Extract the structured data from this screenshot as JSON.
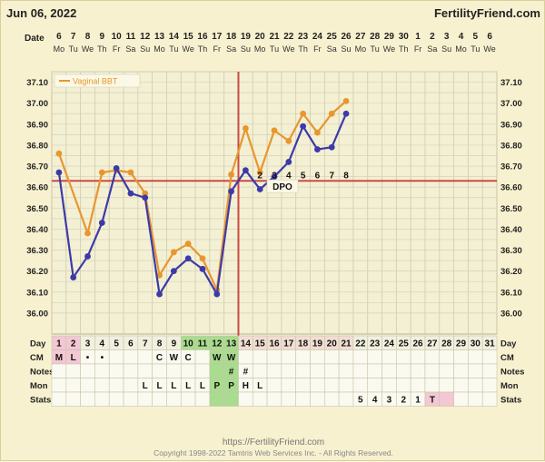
{
  "header": {
    "date": "Jun 06, 2022",
    "brand": "FertilityFriend.com",
    "date_row_label": "Date",
    "dates": [
      "6",
      "7",
      "8",
      "9",
      "10",
      "11",
      "12",
      "13",
      "14",
      "15",
      "16",
      "17",
      "18",
      "19",
      "20",
      "21",
      "22",
      "23",
      "24",
      "25",
      "26",
      "27",
      "28",
      "29",
      "30",
      "1",
      "2",
      "3",
      "4",
      "5",
      "6"
    ],
    "weekdays": [
      "Mo",
      "Tu",
      "We",
      "Th",
      "Fr",
      "Sa",
      "Su",
      "Mo",
      "Tu",
      "We",
      "Th",
      "Fr",
      "Sa",
      "Su",
      "Mo",
      "Tu",
      "We",
      "Th",
      "Fr",
      "Sa",
      "Su",
      "Mo",
      "Tu",
      "We",
      "Th",
      "Fr",
      "Sa",
      "Su",
      "Mo",
      "Tu",
      "We"
    ]
  },
  "chart_data": {
    "type": "line",
    "x": [
      1,
      2,
      3,
      4,
      5,
      6,
      7,
      8,
      9,
      10,
      11,
      12,
      13,
      14,
      15,
      16,
      17,
      18,
      19,
      20,
      21,
      22,
      23,
      24,
      25,
      26,
      27,
      28,
      29,
      30,
      31
    ],
    "ylim": [
      35.9,
      37.15
    ],
    "yticks": [
      "37.10",
      "37.00",
      "36.90",
      "36.80",
      "36.70",
      "36.60",
      "36.50",
      "36.40",
      "36.30",
      "36.20",
      "36.10",
      "36.00"
    ],
    "series": [
      {
        "name": "Vaginal BBT",
        "color": "#e8962e",
        "values": [
          36.76,
          null,
          36.38,
          36.67,
          36.68,
          36.67,
          36.57,
          36.18,
          36.29,
          36.33,
          36.26,
          36.11,
          36.66,
          36.88,
          36.67,
          36.87,
          36.82,
          36.95,
          36.86,
          36.95,
          37.01,
          null,
          null,
          null,
          null,
          null,
          null,
          null,
          null,
          null,
          null
        ]
      },
      {
        "name": "",
        "color": "#3d3aa8",
        "values": [
          36.67,
          36.17,
          36.27,
          36.43,
          36.69,
          36.57,
          36.55,
          36.09,
          36.2,
          36.26,
          36.21,
          36.09,
          36.58,
          36.68,
          36.59,
          36.65,
          36.72,
          36.89,
          36.78,
          36.79,
          36.95,
          null,
          null,
          null,
          null,
          null,
          null,
          null,
          null,
          null,
          null
        ]
      }
    ],
    "coverline": 36.63,
    "ovulation_day": 13,
    "dpo_label": "DPO",
    "dpo_numbers": [
      {
        "day": 15,
        "n": "2"
      },
      {
        "day": 16,
        "n": "3"
      },
      {
        "day": 17,
        "n": "4"
      },
      {
        "day": 18,
        "n": "5"
      },
      {
        "day": 19,
        "n": "6"
      },
      {
        "day": 20,
        "n": "7"
      },
      {
        "day": 21,
        "n": "8"
      }
    ]
  },
  "rows": {
    "labels": [
      "Day",
      "CM",
      "Notes",
      "Mon",
      "Stats"
    ],
    "days": [
      "1",
      "2",
      "3",
      "4",
      "5",
      "6",
      "7",
      "8",
      "9",
      "10",
      "11",
      "12",
      "13",
      "14",
      "15",
      "16",
      "17",
      "18",
      "19",
      "20",
      "21",
      "22",
      "23",
      "24",
      "25",
      "26",
      "27",
      "28",
      "29",
      "30",
      "31"
    ],
    "cm": {
      "1": "M",
      "2": "L",
      "3": "•",
      "4": "•",
      "8": "C",
      "9": "W",
      "10": "C",
      "12": "W",
      "13": "W"
    },
    "notes": {
      "13": "#",
      "14": "#"
    },
    "mon": {
      "7": "L",
      "8": "L",
      "9": "L",
      "10": "L",
      "11": "L",
      "12": "P",
      "13": "P",
      "14": "H",
      "15": "L"
    },
    "stats": {
      "22": "5",
      "23": "4",
      "24": "3",
      "25": "2",
      "26": "1",
      "27": "T"
    }
  },
  "colors": {
    "bbt": "#e8962e",
    "line2": "#3d3aa8",
    "coverline": "#cc4a44",
    "fertile_green": "#a9dc8e",
    "period_pink": "#f3c7d3",
    "post_ov_pink": "#f2ddd2"
  },
  "footer": {
    "url": "https://FertilityFriend.com",
    "copyright": "Copyright 1998-2022 Tamtris Web Services Inc. - All Rights Reserved."
  }
}
